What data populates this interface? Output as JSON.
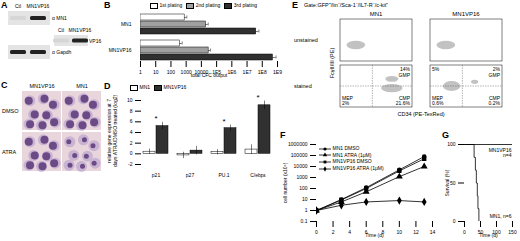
{
  "chart_data": [
    {
      "title": "B",
      "type": "bar",
      "orientation": "horizontal",
      "log": "x",
      "categories": [
        "MN1",
        "MN1VP16"
      ],
      "series": [
        {
          "name": "1st plating",
          "color": "#ffffff",
          "values": [
            800,
            400
          ],
          "errors": [
            300,
            150
          ]
        },
        {
          "name": "2nd plating",
          "color": "#a0a0a0",
          "values": [
            20000,
            30000
          ],
          "errors": [
            8000,
            10000
          ]
        },
        {
          "name": "3rd plating",
          "color": "#303030",
          "values": [
            40000000,
            500000000
          ],
          "errors": [
            20000000,
            300000000
          ]
        }
      ],
      "x_label": "total CFC output",
      "xlim": [
        1,
        1000000000
      ],
      "xticks": [
        1,
        10,
        100,
        1000,
        10000,
        {
          "value": 100000,
          "label": "1E5"
        },
        {
          "value": 1000000,
          "label": "1E6"
        },
        {
          "value": 10000000,
          "label": "1E7"
        },
        {
          "value": 100000000,
          "label": "1E8"
        },
        {
          "value": 1000000000,
          "label": "1E9"
        }
      ],
      "legend": "top"
    },
    {
      "title": "D",
      "type": "bar",
      "categories": [
        "p21",
        "p27",
        "PU.1",
        "C/ebpε"
      ],
      "series": [
        {
          "name": "MN1",
          "color": "#ffffff",
          "values": [
            0.4,
            -0.3,
            0.3,
            0.8
          ],
          "errors": [
            0.5,
            0.6,
            0.5,
            0.9
          ]
        },
        {
          "name": "MN1VP16",
          "color": "#303030",
          "values": [
            5.2,
            0.6,
            4.8,
            9.1
          ],
          "errors": [
            0.7,
            0.8,
            0.6,
            0.8
          ]
        }
      ],
      "y_label": "relative gene expression at 7 days ATRA/DMSO treated (log2)",
      "ylim": [
        -2,
        10
      ],
      "yticks": [
        -2,
        0,
        2,
        4,
        6,
        8,
        10
      ],
      "annotations": [
        {
          "category": "p21",
          "text": "*"
        },
        {
          "category": "PU.1",
          "text": "*"
        },
        {
          "category": "C/ebpε",
          "text": "*"
        }
      ],
      "legend": "top"
    },
    {
      "title": "F",
      "type": "line",
      "log": "y",
      "x": [
        0,
        3,
        6,
        10,
        13
      ],
      "series": [
        {
          "name": "MN1 DMSO",
          "color": "#000000",
          "marker": "circle",
          "line_style": "solid",
          "values": [
            1,
            10,
            120,
            5000,
            80000
          ]
        },
        {
          "name": "MN1 ATRA (1μM)",
          "color": "#000000",
          "marker": "triangle",
          "line_style": "solid",
          "values": [
            1,
            6,
            50,
            1200,
            10000
          ]
        },
        {
          "name": "MN1VP16 DMSO",
          "color": "#000000",
          "marker": "square",
          "line_style": "solid",
          "values": [
            1,
            9,
            100,
            4000,
            50000
          ]
        },
        {
          "name": "MN1VP16 ATRA (1μM)",
          "color": "#000000",
          "marker": "diamond",
          "line_style": "solid",
          "values": [
            1,
            3,
            6,
            8,
            6
          ]
        }
      ],
      "x_label": "Time (d)",
      "y_label": "cell number (x10⁵)",
      "xlim": [
        0,
        14
      ],
      "xticks": [
        0,
        2,
        4,
        6,
        8,
        10,
        12,
        14
      ],
      "ylim": [
        0.1,
        1000000
      ],
      "yticks": [
        0.1,
        1,
        10,
        100,
        1000,
        10000,
        100000,
        1000000
      ],
      "legend": "top-left"
    },
    {
      "title": "G",
      "type": "step",
      "series": [
        {
          "name": "MN1VP16",
          "label": "MN1VP16 n=4",
          "color": "#000000",
          "x": [
            0,
            150
          ],
          "values": [
            100,
            100
          ]
        },
        {
          "name": "MN1",
          "label": "MN1, n=6",
          "color": "#000000",
          "x": [
            0,
            30,
            34,
            37,
            40,
            42,
            45
          ],
          "values": [
            100,
            83.3,
            66.7,
            50,
            33.3,
            16.7,
            0
          ]
        }
      ],
      "x_label": "Time (d)",
      "y_label": "Survival (%)",
      "xlim": [
        0,
        150
      ],
      "xticks": [
        0,
        50,
        100,
        150
      ],
      "ylim": [
        0,
        100
      ],
      "yticks": [
        0,
        50,
        100
      ]
    }
  ],
  "panels": {
    "A": {
      "title": "A",
      "lanes": [
        "Ctl",
        "MN1VP16"
      ],
      "blots": [
        {
          "label": "α MN1",
          "bands": [
            false,
            true
          ]
        },
        {
          "label": "α Gapdh",
          "bands": [
            true,
            true
          ]
        },
        {
          "label": "VP16",
          "bands": [
            false,
            true
          ]
        }
      ]
    },
    "C": {
      "title": "C",
      "columns": [
        "MN1VP16",
        "MN1"
      ],
      "rows": [
        "DMSO",
        "ATRA"
      ]
    },
    "E": {
      "title": "E",
      "gate": "Gate:GFP⁺/lin⁻/Sca-1⁻/IL7-R⁻/c-kit⁺",
      "columns": [
        "MN1",
        "MN1VP16"
      ],
      "rows": [
        "unstained",
        "stained"
      ],
      "y_label": "FcγII/III (PE)",
      "x_label": "CD34 (PE-TexRed)",
      "stained_quadrants": [
        {
          "top-right": [
            "14%",
            "GMP"
          ],
          "bottom-left": [
            "MEP",
            "2%"
          ],
          "bottom-right": [
            "CMP",
            "21.6%"
          ]
        },
        {
          "top-left": [
            "5%"
          ],
          "top-right": [
            "2%",
            "GMP"
          ],
          "bottom-left": [
            "MEP",
            "0.6%"
          ],
          "bottom-right": [
            "CMP",
            "0.2%"
          ]
        }
      ]
    }
  }
}
